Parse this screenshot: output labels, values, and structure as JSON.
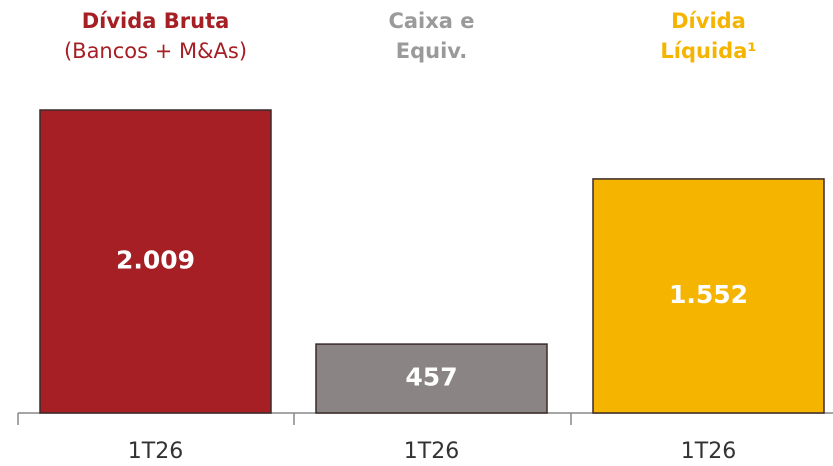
{
  "chart_data": {
    "type": "bar",
    "headers": [
      [
        "Dívida Bruta",
        "(Bancos + M&As)"
      ],
      [
        "Caixa e",
        "Equiv."
      ],
      [
        "Dívida",
        "Líquida¹"
      ]
    ],
    "categories": [
      "1T26",
      "1T26",
      "1T26"
    ],
    "values": [
      2009,
      457,
      1552
    ],
    "value_labels": [
      "2.009",
      "457",
      "1.552"
    ],
    "colors": [
      "#a51f24",
      "#8a8584",
      "#f5b400"
    ],
    "header_colors": [
      "#a51f24",
      "#9a9a9a",
      "#f5b400"
    ]
  }
}
